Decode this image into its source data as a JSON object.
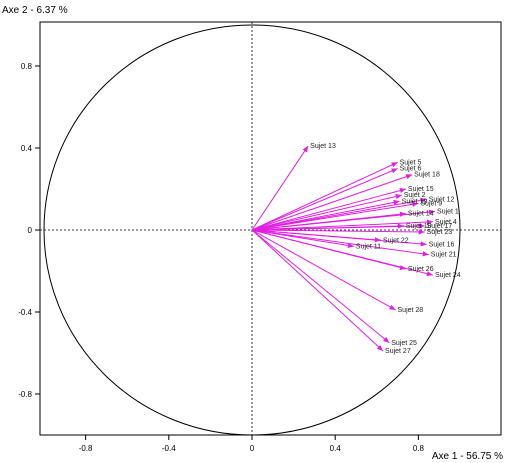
{
  "chart_data": {
    "type": "scatter",
    "subtype": "correlation-circle",
    "title": "",
    "ylabel": "Axe 2  -  6.37 %",
    "xlabel": "Axe 1  -  56.75 %",
    "xlim": [
      -1.02,
      1.15
    ],
    "ylim": [
      -1.02,
      1.02
    ],
    "xticks": [
      -0.8,
      -0.4,
      0,
      0.4,
      0.8
    ],
    "yticks": [
      0.8,
      0.4,
      0,
      -0.4,
      -0.8
    ],
    "xtick_labels": [
      "-0.8",
      "-0.4",
      "0",
      "0.4",
      "0.8"
    ],
    "ytick_labels": [
      "0.8",
      "0.4",
      "0",
      "-0.4",
      "-0.8"
    ],
    "unit_circle": true,
    "reference_lines": "dashed at x=0 and y=0",
    "arrow_color": "#e020e0",
    "label_color": "#222222",
    "points": [
      {
        "label": "Sujet 13",
        "x": 0.27,
        "y": 0.41
      },
      {
        "label": "Sujet 5",
        "x": 0.7,
        "y": 0.33
      },
      {
        "label": "Sujet 6",
        "x": 0.7,
        "y": 0.3
      },
      {
        "label": "Sujet 18",
        "x": 0.77,
        "y": 0.27
      },
      {
        "label": "Sujet 15",
        "x": 0.74,
        "y": 0.2
      },
      {
        "label": "Sujet 2",
        "x": 0.72,
        "y": 0.17
      },
      {
        "label": "Sujet 12",
        "x": 0.84,
        "y": 0.15
      },
      {
        "label": "Sujet 9",
        "x": 0.8,
        "y": 0.13
      },
      {
        "label": "Sujet 19",
        "x": 0.71,
        "y": 0.14
      },
      {
        "label": "Sujet 1",
        "x": 0.88,
        "y": 0.09
      },
      {
        "label": "Sujet 14",
        "x": 0.74,
        "y": 0.08
      },
      {
        "label": "Sujet 4",
        "x": 0.87,
        "y": 0.04
      },
      {
        "label": "Sujet 17",
        "x": 0.83,
        "y": 0.02
      },
      {
        "label": "Sujet 10",
        "x": 0.73,
        "y": 0.02
      },
      {
        "label": "Sujet 23",
        "x": 0.83,
        "y": -0.01
      },
      {
        "label": "Sujet 16",
        "x": 0.84,
        "y": -0.07
      },
      {
        "label": "Sujet 22",
        "x": 0.62,
        "y": -0.05
      },
      {
        "label": "Sujet 11",
        "x": 0.49,
        "y": -0.08
      },
      {
        "label": "Sujet 21",
        "x": 0.85,
        "y": -0.12
      },
      {
        "label": "Sujet 26",
        "x": 0.74,
        "y": -0.19
      },
      {
        "label": "Sujet 24",
        "x": 0.87,
        "y": -0.22
      },
      {
        "label": "Sujet 28",
        "x": 0.69,
        "y": -0.39
      },
      {
        "label": "Sujet 25",
        "x": 0.66,
        "y": -0.55
      },
      {
        "label": "Sujet 27",
        "x": 0.63,
        "y": -0.59
      }
    ]
  }
}
